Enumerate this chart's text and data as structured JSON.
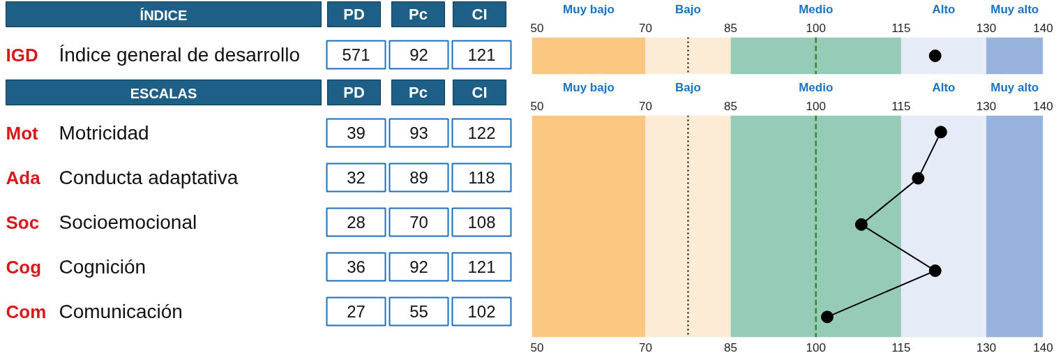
{
  "chart_data": [
    {
      "type": "other",
      "title": "ÍNDICE",
      "annotations": [
        "PD",
        "Pc",
        "CI",
        "Índice general de desarrollo",
        "571",
        "92",
        "121"
      ]
    },
    {
      "type": "scatter",
      "orientation": "horizontal",
      "categories": [
        "IGD"
      ],
      "marker": "circle",
      "series": [
        {
          "color": "#000000",
          "values": [
            121
          ]
        }
      ],
      "xlim": [
        50,
        140
      ],
      "xticks": [
        50,
        70,
        85,
        100,
        115,
        130,
        140
      ],
      "tick_labels": "x",
      "bands": [
        {
          "axis": "x",
          "from": 50,
          "to": 70,
          "label": "Muy bajo",
          "color": "#fbc882"
        },
        {
          "axis": "x",
          "from": 70,
          "to": 85,
          "label": "Bajo",
          "color": "#fdecd5"
        },
        {
          "axis": "x",
          "from": 85,
          "to": 115,
          "label": "Medio",
          "color": "#96ccb7"
        },
        {
          "axis": "x",
          "from": 115,
          "to": 130,
          "label": "Alto",
          "color": "#e6ecf7"
        },
        {
          "axis": "x",
          "from": 130,
          "to": 140,
          "label": "Muy alto",
          "color": "#96b2dd"
        }
      ],
      "ref_lines": [
        {
          "axis": "x",
          "value": 77.5,
          "color": "#222222",
          "line_style": "dotted"
        },
        {
          "axis": "x",
          "value": 100,
          "color": "#2e8b2e",
          "line_style": "dashed"
        }
      ]
    },
    {
      "type": "other",
      "title": "ESCALAS",
      "annotations": [
        "PD",
        "Pc",
        "CI",
        "Motricidad",
        "39",
        "93",
        "122",
        "Conducta adaptativa",
        "32",
        "89",
        "118",
        "Socioemocional",
        "28",
        "70",
        "108",
        "Cognición",
        "36",
        "92",
        "121",
        "Comunicación",
        "27",
        "55",
        "102"
      ]
    },
    {
      "type": "line",
      "orientation": "horizontal",
      "categories": [
        "Mot",
        "Ada",
        "Soc",
        "Cog",
        "Com"
      ],
      "marker": "circle",
      "series": [
        {
          "color": "#000000",
          "values": [
            122,
            118,
            108,
            121,
            102
          ]
        }
      ],
      "xlim": [
        50,
        140
      ],
      "xticks": [
        50,
        70,
        85,
        100,
        115,
        130,
        140
      ],
      "x2lim": [
        50,
        140
      ],
      "x2ticks": [
        50,
        70,
        85,
        100,
        115,
        130,
        140
      ],
      "tick_labels": "x",
      "bands": [
        {
          "axis": "x",
          "from": 50,
          "to": 70,
          "label": "Muy bajo",
          "color": "#fbc882"
        },
        {
          "axis": "x",
          "from": 70,
          "to": 85,
          "label": "Bajo",
          "color": "#fdecd5"
        },
        {
          "axis": "x",
          "from": 85,
          "to": 115,
          "label": "Medio",
          "color": "#96ccb7"
        },
        {
          "axis": "x",
          "from": 115,
          "to": 130,
          "label": "Alto",
          "color": "#e6ecf7"
        },
        {
          "axis": "x",
          "from": 130,
          "to": 140,
          "label": "Muy alto",
          "color": "#96b2dd"
        }
      ],
      "ref_lines": [
        {
          "axis": "x",
          "value": 77.5,
          "color": "#222222",
          "line_style": "dotted"
        },
        {
          "axis": "x",
          "value": 100,
          "color": "#2e8b2e",
          "line_style": "dashed"
        }
      ]
    }
  ]
}
